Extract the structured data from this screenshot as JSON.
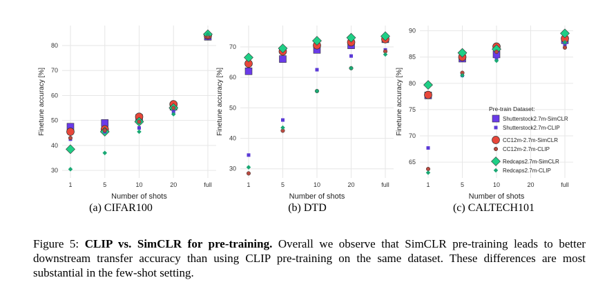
{
  "chart_data": [
    {
      "type": "scatter",
      "subcaption": "(a) CIFAR100",
      "xlabel": "Number of shots",
      "ylabel": "Finetune accuracy [%]",
      "categories": [
        "1",
        "5",
        "10",
        "20",
        "full"
      ],
      "yticks": [
        30,
        40,
        50,
        60,
        70,
        80
      ],
      "ylim": [
        27,
        88
      ],
      "grid": true,
      "series": [
        {
          "name": "Shutterstock2.7m-SimCLR",
          "values": [
            47.5,
            49.0,
            51.0,
            55.5,
            83.5
          ]
        },
        {
          "name": "Shutterstock2.7m-CLIP",
          "values": [
            42.5,
            45.5,
            47.0,
            53.5,
            83.5
          ]
        },
        {
          "name": "CC12m-2.7m-SimCLR",
          "values": [
            45.5,
            46.5,
            51.5,
            56.5,
            84.0
          ]
        },
        {
          "name": "CC12m-2.7m-CLIP",
          "values": [
            43.0,
            46.0,
            49.5,
            55.0,
            83.5
          ]
        },
        {
          "name": "Redcaps2.7m-SimCLR",
          "values": [
            38.5,
            45.5,
            49.5,
            55.0,
            84.5
          ]
        },
        {
          "name": "Redcaps2.7m-CLIP",
          "values": [
            30.5,
            37.0,
            45.5,
            52.5,
            84.5
          ]
        }
      ]
    },
    {
      "type": "scatter",
      "subcaption": "(b) DTD",
      "xlabel": "Number of shots",
      "ylabel": "Finetune accuracy [%]",
      "categories": [
        "1",
        "5",
        "10",
        "20",
        "full"
      ],
      "yticks": [
        30,
        40,
        50,
        60,
        70
      ],
      "ylim": [
        27,
        77
      ],
      "grid": true,
      "series": [
        {
          "name": "Shutterstock2.7m-SimCLR",
          "values": [
            62.0,
            66.0,
            69.0,
            70.5,
            72.5
          ]
        },
        {
          "name": "Shutterstock2.7m-CLIP",
          "values": [
            34.5,
            46.0,
            62.5,
            67.0,
            69.0
          ]
        },
        {
          "name": "CC12m-2.7m-SimCLR",
          "values": [
            64.5,
            68.5,
            70.5,
            71.5,
            72.5
          ]
        },
        {
          "name": "CC12m-2.7m-CLIP",
          "values": [
            28.5,
            42.5,
            55.5,
            63.0,
            68.5
          ]
        },
        {
          "name": "Redcaps2.7m-SimCLR",
          "values": [
            66.5,
            69.5,
            72.0,
            73.0,
            73.5
          ]
        },
        {
          "name": "Redcaps2.7m-CLIP",
          "values": [
            30.5,
            43.5,
            55.5,
            63.0,
            67.5
          ]
        }
      ]
    },
    {
      "type": "scatter",
      "subcaption": "(c) CALTECH101",
      "xlabel": "Number of shots",
      "ylabel": "Finetune accuracy [%]",
      "categories": [
        "1",
        "5",
        "10",
        "20",
        "full"
      ],
      "yticks": [
        65,
        70,
        75,
        80,
        85,
        90
      ],
      "ylim": [
        62,
        91
      ],
      "grid": true,
      "legend_title": "Pre-train Dataset:",
      "legend_position": "right",
      "series": [
        {
          "name": "Shutterstock2.7m-SimCLR",
          "values": [
            77.7,
            84.7,
            85.5,
            null,
            88.2
          ]
        },
        {
          "name": "Shutterstock2.7m-CLIP",
          "values": [
            67.7,
            81.5,
            84.7,
            null,
            87.2
          ]
        },
        {
          "name": "CC12m-2.7m-SimCLR",
          "values": [
            77.8,
            85.0,
            87.0,
            null,
            88.5
          ]
        },
        {
          "name": "CC12m-2.7m-CLIP",
          "values": [
            63.7,
            82.0,
            86.0,
            null,
            86.8
          ]
        },
        {
          "name": "Redcaps2.7m-SimCLR",
          "values": [
            79.7,
            85.8,
            86.5,
            null,
            89.5
          ]
        },
        {
          "name": "Redcaps2.7m-CLIP",
          "values": [
            63.0,
            81.5,
            84.3,
            null,
            87.8
          ]
        }
      ]
    }
  ],
  "series_styles": [
    {
      "marker": "square",
      "size": "large",
      "color": "#6a3be8"
    },
    {
      "marker": "square",
      "size": "small",
      "color": "#5b3ad6"
    },
    {
      "marker": "circle",
      "size": "large",
      "color": "#e8473a"
    },
    {
      "marker": "circle",
      "size": "small",
      "color": "#b84a40"
    },
    {
      "marker": "diamond",
      "size": "large",
      "color": "#1fcf86"
    },
    {
      "marker": "diamond",
      "size": "small",
      "color": "#1aa874"
    }
  ],
  "figure_caption": {
    "label": "Figure 5:",
    "bold": "CLIP vs. SimCLR for pre-training.",
    "text": "Overall we observe that SimCLR pre-training leads to better downstream transfer accuracy than using CLIP pre-training on the same dataset. These differences are most substantial in the few-shot setting."
  }
}
